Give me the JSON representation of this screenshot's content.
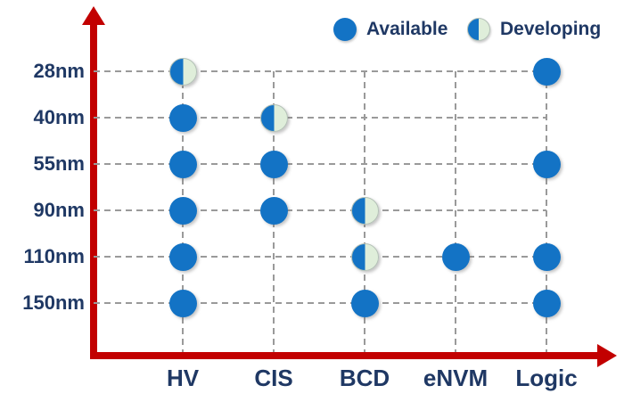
{
  "legend": [
    {
      "label": "Available",
      "status": "available"
    },
    {
      "label": "Developing",
      "status": "developing"
    }
  ],
  "colors": {
    "dot_blue": "#1373c5",
    "developing_half": "#dfeeda",
    "axis_red": "#c20000",
    "label_navy": "#1f3864",
    "grid_gray": "#9a9a9a"
  },
  "chart_data": {
    "type": "scatter",
    "title": "",
    "xlabel": "",
    "ylabel": "",
    "grid": "dashed",
    "legend_position": "top-right",
    "x_categories": [
      "HV",
      "CIS",
      "BCD",
      "eNVM",
      "Logic"
    ],
    "y_categories": [
      "28nm",
      "40nm",
      "55nm",
      "90nm",
      "110nm",
      "150nm"
    ],
    "points": [
      {
        "x": "HV",
        "y": "28nm",
        "status": "developing"
      },
      {
        "x": "HV",
        "y": "40nm",
        "status": "available"
      },
      {
        "x": "HV",
        "y": "55nm",
        "status": "available"
      },
      {
        "x": "HV",
        "y": "90nm",
        "status": "available"
      },
      {
        "x": "HV",
        "y": "110nm",
        "status": "available"
      },
      {
        "x": "HV",
        "y": "150nm",
        "status": "available"
      },
      {
        "x": "CIS",
        "y": "40nm",
        "status": "developing"
      },
      {
        "x": "CIS",
        "y": "55nm",
        "status": "available"
      },
      {
        "x": "CIS",
        "y": "90nm",
        "status": "available"
      },
      {
        "x": "BCD",
        "y": "90nm",
        "status": "developing"
      },
      {
        "x": "BCD",
        "y": "110nm",
        "status": "developing"
      },
      {
        "x": "BCD",
        "y": "150nm",
        "status": "available"
      },
      {
        "x": "eNVM",
        "y": "110nm",
        "status": "available"
      },
      {
        "x": "Logic",
        "y": "28nm",
        "status": "available"
      },
      {
        "x": "Logic",
        "y": "55nm",
        "status": "available"
      },
      {
        "x": "Logic",
        "y": "110nm",
        "status": "available"
      },
      {
        "x": "Logic",
        "y": "150nm",
        "status": "available"
      }
    ]
  }
}
